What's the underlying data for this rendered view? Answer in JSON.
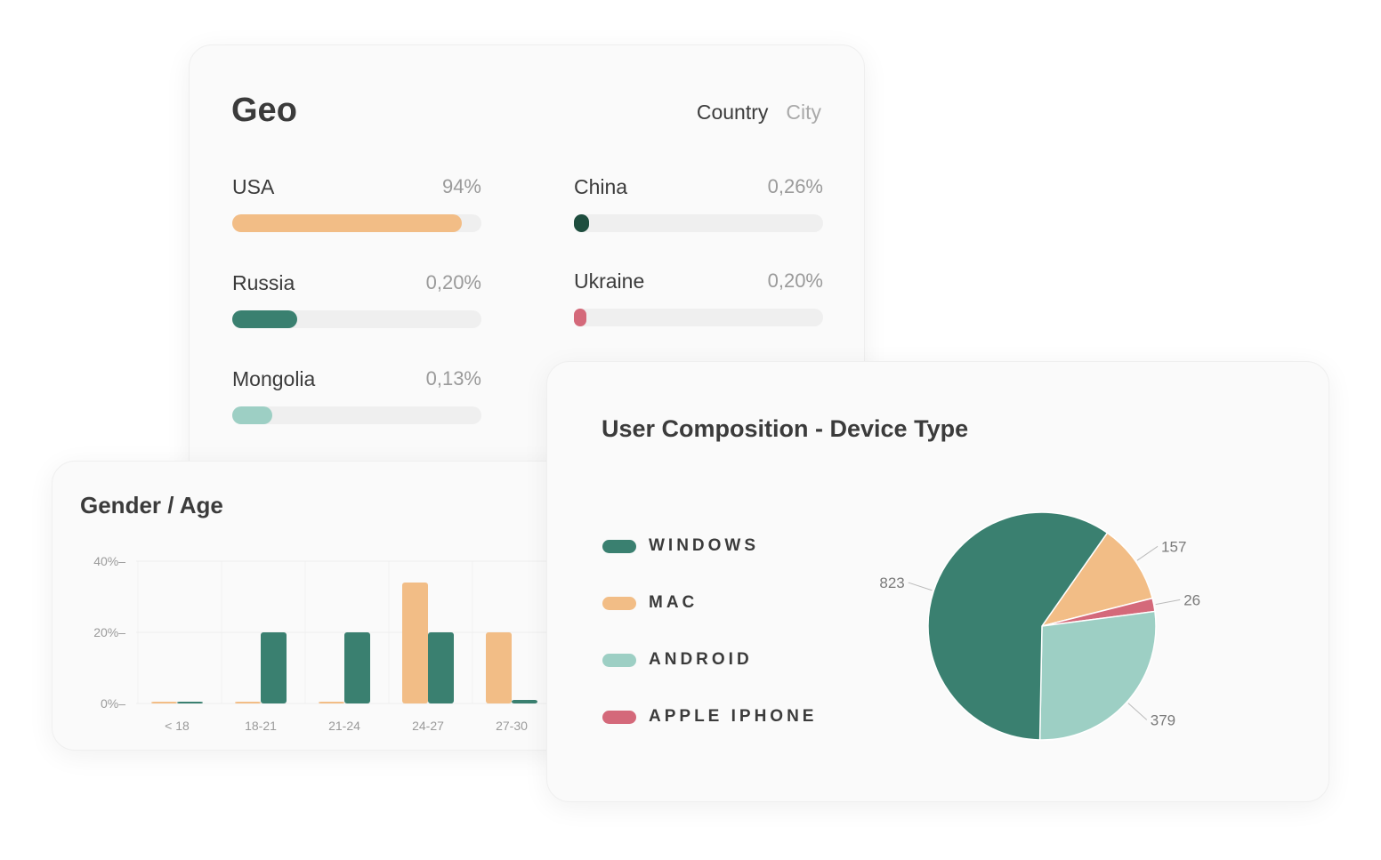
{
  "geo": {
    "title": "Geo",
    "tabs": [
      {
        "label": "Country",
        "active": true
      },
      {
        "label": "City",
        "active": false
      }
    ],
    "items": [
      {
        "label": "USA",
        "value": "94%",
        "fill": 0.92,
        "color": "#f2bd86"
      },
      {
        "label": "China",
        "value": "0,26%",
        "fill": 0.06,
        "color": "#1e4d3e"
      },
      {
        "label": "Russia",
        "value": "0,20%",
        "fill": 0.26,
        "color": "#3a8070"
      },
      {
        "label": "Ukraine",
        "value": "0,20%",
        "fill": 0.04,
        "color": "#d4697a"
      },
      {
        "label": "Mongolia",
        "value": "0,13%",
        "fill": 0.16,
        "color": "#9dcfc4"
      }
    ]
  },
  "gender_age": {
    "title": "Gender / Age"
  },
  "device": {
    "title": "User Composition - Device Type"
  },
  "colors": {
    "teal": "#3a8070",
    "orange": "#f2bd86",
    "mint": "#9dcfc4",
    "pink": "#d4697a"
  },
  "chart_data": [
    {
      "type": "bar",
      "title": "Gender / Age",
      "categories": [
        "< 18",
        "18-21",
        "21-24",
        "24-27",
        "27-30"
      ],
      "series": [
        {
          "values": [
            0.5,
            0,
            0.5,
            34,
            20
          ],
          "color": "#f2bd86"
        },
        {
          "values": [
            0.5,
            20,
            20,
            20,
            1
          ],
          "color": "#3a8070"
        }
      ],
      "yticks": [
        "0%",
        "20%",
        "40%"
      ],
      "ytick_values": [
        0,
        20,
        40
      ],
      "ylim": [
        0,
        40
      ],
      "grid": true
    },
    {
      "type": "pie",
      "title": "User Composition - Device Type",
      "labels": [
        "WINDOWS",
        "MAC",
        "ANDROID",
        "APPLE IPHONE"
      ],
      "values": [
        823,
        157,
        379,
        26
      ],
      "colors": [
        "#3a8070",
        "#f2bd86",
        "#9dcfc4",
        "#d4697a"
      ],
      "slice_order": [
        1,
        3,
        2,
        0
      ],
      "legend": "left"
    }
  ]
}
